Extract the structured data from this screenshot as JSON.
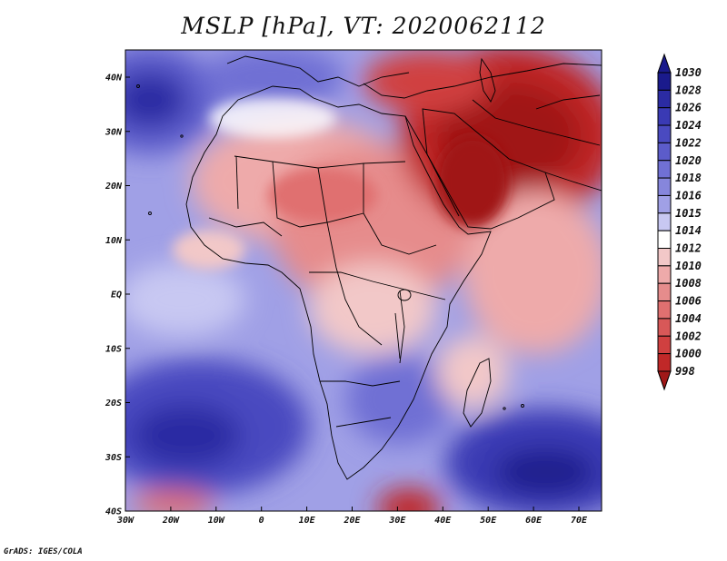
{
  "title": "MSLP [hPa], VT: 2020062112",
  "footer": "GrADS: IGES/COLA",
  "map": {
    "region": "Africa",
    "lon_ticks": [
      "30W",
      "20W",
      "10W",
      "0",
      "10E",
      "20E",
      "30E",
      "40E",
      "50E",
      "60E",
      "70E"
    ],
    "lat_ticks": [
      "40N",
      "30N",
      "20N",
      "10N",
      "EQ",
      "10S",
      "20S",
      "30S",
      "40S"
    ]
  },
  "colorbar": {
    "labels": [
      "1030",
      "1028",
      "1026",
      "1024",
      "1022",
      "1020",
      "1018",
      "1016",
      "1015",
      "1014",
      "1012",
      "1010",
      "1008",
      "1006",
      "1004",
      "1002",
      "1000",
      "998"
    ],
    "colors": [
      "#1a1a8c",
      "#2b2ba3",
      "#3a3ab4",
      "#4a4ac0",
      "#5c5cca",
      "#7070d4",
      "#8686dc",
      "#a0a0e6",
      "#c8c8f2",
      "#ffffff",
      "#f2c8c8",
      "#eeaaaa",
      "#e68c8c",
      "#e07070",
      "#d85858",
      "#d04040",
      "#c02828",
      "#a01818"
    ]
  },
  "colors": {
    "ocean_high": "#2b2ba3",
    "ocean_mid": "#7070d4",
    "land_low": "#e68c8c",
    "heat_low": "#a01818"
  }
}
